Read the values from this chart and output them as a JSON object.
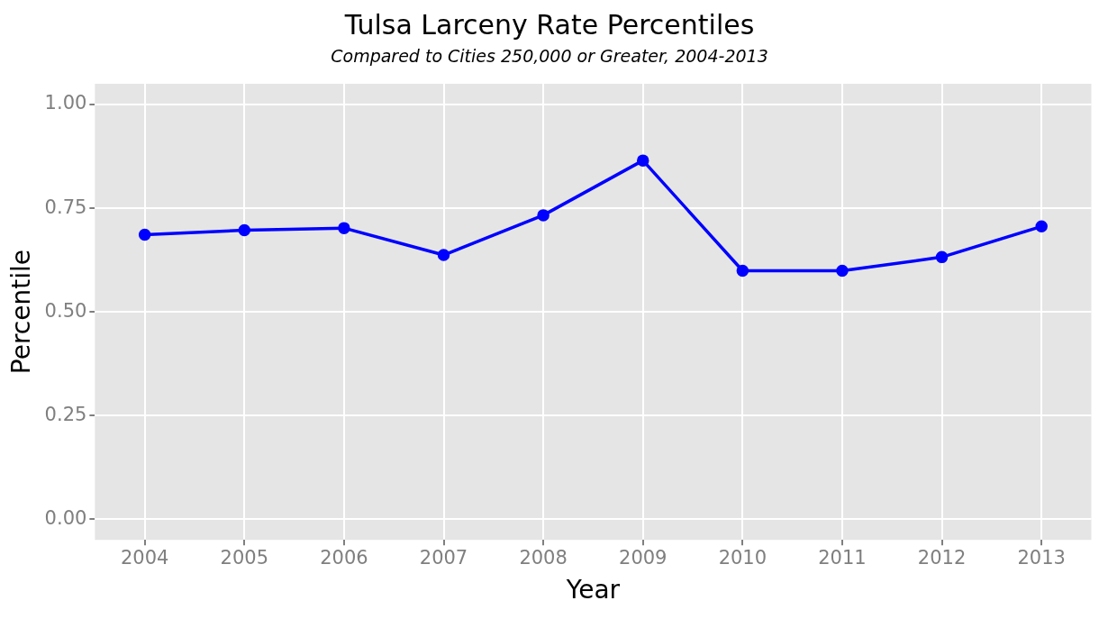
{
  "chart_data": {
    "type": "line",
    "title": "Tulsa Larceny Rate Percentiles",
    "subtitle": "Compared to Cities 250,000 or Greater, 2004-2013",
    "xlabel": "Year",
    "ylabel": "Percentile",
    "categories": [
      "2004",
      "2005",
      "2006",
      "2007",
      "2008",
      "2009",
      "2010",
      "2011",
      "2012",
      "2013"
    ],
    "series": [
      {
        "color": "#0000ff",
        "values": [
          0.686,
          0.697,
          0.702,
          0.637,
          0.733,
          0.865,
          0.599,
          0.599,
          0.632,
          0.706
        ]
      }
    ],
    "ylim": [
      -0.05,
      1.05
    ],
    "yticks": [
      {
        "value": 0,
        "label": "0.00"
      },
      {
        "value": 0.25,
        "label": "0.25"
      },
      {
        "value": 0.5,
        "label": "0.50"
      },
      {
        "value": 0.75,
        "label": "0.75"
      },
      {
        "value": 1,
        "label": "1.00"
      }
    ],
    "grid": true,
    "marker": "circle",
    "line_style": "solid",
    "legend": false
  }
}
